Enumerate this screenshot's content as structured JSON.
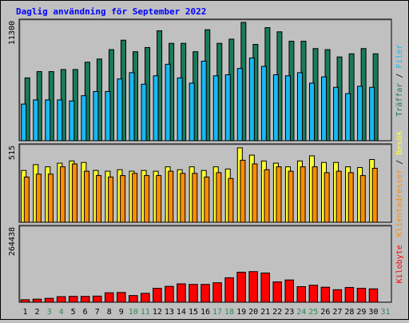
{
  "colors": {
    "frame_bg": "#c0c0c0",
    "title": "#0000ff",
    "plot_bg": "#c0c0c0",
    "hits": "#1a7a5c",
    "files": "#19b8f4",
    "visits": "#ffff33",
    "sites": "#ff8c00",
    "kbytes": "#ff0000",
    "weekday_label": "#000000",
    "weekend_label": "#2e8b57"
  },
  "chart_data": [
    {
      "type": "bar",
      "title": "Daglig användning för September 2022",
      "ylabel": "11300",
      "ylim": [
        0,
        11300
      ],
      "legend": [
        "Träffar",
        "Filer"
      ],
      "categories": [
        "1",
        "2",
        "3",
        "4",
        "5",
        "6",
        "7",
        "8",
        "9",
        "10",
        "11",
        "12",
        "13",
        "14",
        "15",
        "16",
        "17",
        "18",
        "19",
        "20",
        "21",
        "22",
        "23",
        "24",
        "25",
        "26",
        "27",
        "28",
        "29",
        "30",
        "31"
      ],
      "weekend_days": [
        "3",
        "4",
        "10",
        "11",
        "17",
        "18",
        "24",
        "25",
        "31"
      ],
      "series": [
        {
          "name": "Träffar",
          "values": [
            6000,
            6600,
            6600,
            6800,
            6800,
            7500,
            7800,
            8700,
            9600,
            8500,
            8900,
            10500,
            9300,
            9300,
            8500,
            10600,
            9300,
            9700,
            11300,
            9200,
            10800,
            10400,
            9500,
            9500,
            8800,
            8700,
            8000,
            8300,
            8800,
            8300,
            null
          ]
        },
        {
          "name": "Filer",
          "values": [
            3500,
            3900,
            3900,
            3900,
            3800,
            4300,
            4700,
            4700,
            5900,
            6500,
            5400,
            6200,
            7300,
            6000,
            5500,
            7600,
            6200,
            6300,
            6900,
            7900,
            7100,
            6300,
            6200,
            6500,
            5500,
            6100,
            5100,
            4500,
            5200,
            5100,
            null
          ]
        }
      ]
    },
    {
      "type": "bar",
      "ylabel": "515",
      "ylim": [
        0,
        515
      ],
      "legend": [
        "Klientadresser",
        "Besök"
      ],
      "series": [
        {
          "name": "Besök",
          "values": [
            355,
            395,
            380,
            405,
            420,
            410,
            355,
            350,
            360,
            350,
            355,
            350,
            380,
            360,
            380,
            355,
            380,
            365,
            510,
            460,
            420,
            405,
            380,
            420,
            455,
            410,
            410,
            380,
            375,
            430,
            null
          ]
        },
        {
          "name": "Klientadresser",
          "values": [
            310,
            330,
            330,
            380,
            400,
            350,
            320,
            310,
            320,
            335,
            320,
            320,
            350,
            335,
            335,
            310,
            340,
            300,
            425,
            400,
            360,
            380,
            350,
            380,
            380,
            340,
            350,
            340,
            320,
            370,
            null
          ]
        }
      ]
    },
    {
      "type": "bar",
      "ylabel": "264438",
      "ylim": [
        0,
        264438
      ],
      "legend": [
        "Kilobyte"
      ],
      "series": [
        {
          "name": "Kilobyte",
          "values": [
            9000,
            11000,
            14000,
            20000,
            21000,
            21000,
            22000,
            34000,
            35000,
            24000,
            32000,
            50000,
            57000,
            66000,
            64000,
            64000,
            70000,
            88000,
            108000,
            110000,
            105000,
            73000,
            80000,
            56000,
            61000,
            54000,
            45000,
            53000,
            50000,
            48000,
            null
          ]
        }
      ]
    }
  ],
  "legend_separator": " / "
}
